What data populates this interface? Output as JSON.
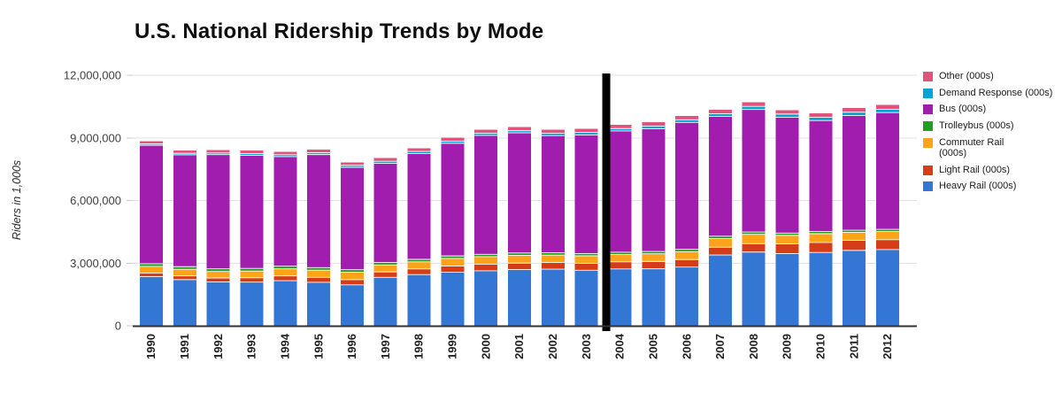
{
  "title": "U.S. National Ridership Trends by Mode",
  "y_axis": {
    "label": "Riders in 1,000s",
    "ticks": [
      {
        "value": 0,
        "label": "0"
      },
      {
        "value": 3000000,
        "label": "3,000,000"
      },
      {
        "value": 6000000,
        "label": "6,000,000"
      },
      {
        "value": 9000000,
        "label": "9,000,000"
      },
      {
        "value": 12000000,
        "label": "12,000,000"
      }
    ]
  },
  "chart_data": {
    "type": "bar",
    "stacked": true,
    "grid": true,
    "legend_position": "right",
    "title": "U.S. National Ridership Trends by Mode",
    "xlabel": "",
    "ylabel": "Riders in 1,000s",
    "ylim": [
      0,
      12000000
    ],
    "categories": [
      "1990",
      "1991",
      "1992",
      "1993",
      "1994",
      "1995",
      "1996",
      "1997",
      "1998",
      "1999",
      "2000",
      "2001",
      "2002",
      "2003",
      "2004",
      "2005",
      "2006",
      "2007",
      "2008",
      "2009",
      "2010",
      "2011",
      "2012"
    ],
    "series": [
      {
        "name": "Heavy Rail (000s)",
        "color": "#3476d4",
        "values": [
          2350000,
          2210000,
          2100000,
          2090000,
          2160000,
          2080000,
          1960000,
          2320000,
          2450000,
          2570000,
          2630000,
          2690000,
          2710000,
          2660000,
          2720000,
          2730000,
          2810000,
          3390000,
          3530000,
          3460000,
          3510000,
          3610000,
          3650000
        ]
      },
      {
        "name": "Light Rail (000s)",
        "color": "#d43d17",
        "values": [
          175000,
          180000,
          190000,
          210000,
          230000,
          240000,
          250000,
          260000,
          270000,
          290000,
          320000,
          310000,
          320000,
          330000,
          340000,
          350000,
          360000,
          370000,
          400000,
          460000,
          480000,
          480000,
          470000
        ]
      },
      {
        "name": "Commuter Rail (000s)",
        "color": "#ffa319",
        "label_lines": [
          "Commuter Rail",
          "(000s)"
        ],
        "values": [
          320000,
          315000,
          310000,
          320000,
          335000,
          345000,
          355000,
          330000,
          340000,
          365000,
          360000,
          375000,
          355000,
          360000,
          350000,
          370000,
          380000,
          420000,
          450000,
          410000,
          420000,
          385000,
          400000
        ]
      },
      {
        "name": "Trolleybus (000s)",
        "color": "#1f9e1f",
        "values": [
          125000,
          125000,
          125000,
          130000,
          130000,
          120000,
          120000,
          120000,
          120000,
          120000,
          110000,
          110000,
          110000,
          110000,
          110000,
          110000,
          110000,
          110000,
          110000,
          110000,
          110000,
          100000,
          100000
        ]
      },
      {
        "name": "Bus (000s)",
        "color": "#a01dad",
        "values": [
          5675000,
          5355000,
          5470000,
          5410000,
          5245000,
          5415000,
          4905000,
          4750000,
          5070000,
          5395000,
          5700000,
          5755000,
          5615000,
          5680000,
          5810000,
          5880000,
          6080000,
          5740000,
          5870000,
          5550000,
          5310000,
          5495000,
          5590000
        ]
      },
      {
        "name": "Demand Response (000s)",
        "color": "#00a4d4",
        "values": [
          70000,
          75000,
          80000,
          85000,
          90000,
          90000,
          95000,
          100000,
          100000,
          105000,
          105000,
          105000,
          110000,
          115000,
          115000,
          125000,
          125000,
          130000,
          150000,
          150000,
          155000,
          160000,
          160000
        ]
      },
      {
        "name": "Other (000s)",
        "color": "#e0547c",
        "values": [
          130000,
          140000,
          145000,
          150000,
          150000,
          150000,
          145000,
          150000,
          155000,
          160000,
          165000,
          170000,
          170000,
          175000,
          175000,
          180000,
          185000,
          190000,
          200000,
          195000,
          195000,
          200000,
          210000
        ]
      }
    ],
    "legend_order_top_to_bottom": [
      "Other (000s)",
      "Demand Response (000s)",
      "Bus (000s)",
      "Trolleybus (000s)",
      "Commuter Rail (000s)",
      "Light Rail (000s)",
      "Heavy Rail (000s)"
    ],
    "divider": {
      "after_category": "2003",
      "color": "#000000"
    }
  }
}
